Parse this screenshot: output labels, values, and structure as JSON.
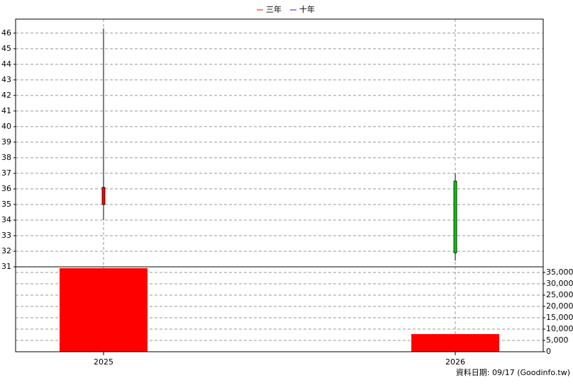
{
  "chart_data": [
    {
      "type": "candlestick",
      "legend": [
        {
          "name": "三年",
          "color": "#ff0000"
        },
        {
          "name": "十年",
          "color": "#6600cc"
        }
      ],
      "x": [
        2025,
        2026
      ],
      "xlim": [
        2024.75,
        2026.25
      ],
      "xticks": [
        2025,
        2026
      ],
      "open": [
        35.0,
        36.5
      ],
      "high": [
        46.3,
        37.0
      ],
      "low": [
        34.0,
        31.4
      ],
      "close": [
        36.1,
        31.9
      ],
      "up_color": "#ff0000",
      "down_color": "#00cc00",
      "ylim": [
        31,
        46.9
      ],
      "yticks": [
        31,
        32,
        33,
        34,
        35,
        36,
        37,
        38,
        39,
        40,
        41,
        42,
        43,
        44,
        45,
        46
      ],
      "grid": true
    },
    {
      "type": "bar",
      "axis_side": "right",
      "x": [
        2025,
        2026
      ],
      "xlim": [
        2024.75,
        2026.25
      ],
      "values": [
        36900,
        7800
      ],
      "color": "#ff0000",
      "ylim": [
        0,
        37500
      ],
      "yticks": [
        0,
        {
          "value": 5000,
          "label": "5,000"
        },
        {
          "value": 10000,
          "label": "10,000"
        },
        {
          "value": 15000,
          "label": "15,000"
        },
        {
          "value": 20000,
          "label": "20,000"
        },
        {
          "value": 25000,
          "label": "25,000"
        },
        {
          "value": 30000,
          "label": "30,000"
        },
        {
          "value": 35000,
          "label": "35,000"
        }
      ],
      "grid": true
    }
  ],
  "footer": "資料日期: 09/17  (Goodinfo.tw)"
}
